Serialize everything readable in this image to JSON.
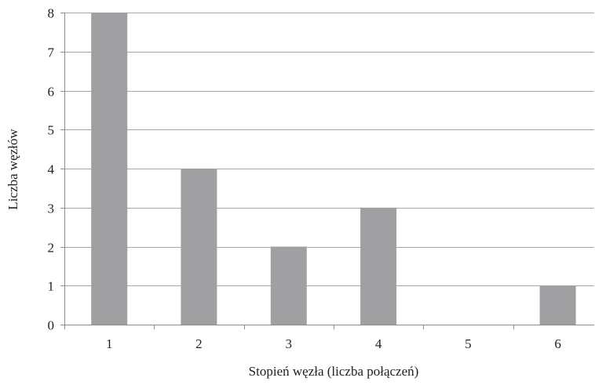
{
  "chart_data": {
    "type": "bar",
    "title": "",
    "xlabel": "Stopień węzła (liczba połączeń)",
    "ylabel": "Liczba węzłów",
    "categories": [
      "1",
      "2",
      "3",
      "4",
      "5",
      "6"
    ],
    "values": [
      8,
      4,
      2,
      3,
      0,
      1
    ],
    "ylim": [
      0,
      8
    ],
    "yticks": [
      "0",
      "1",
      "2",
      "3",
      "4",
      "5",
      "6",
      "7",
      "8"
    ],
    "grid": "horizontal",
    "legend": "none",
    "colors": {
      "bar": "#a0a0a3",
      "grid": "#a6a6a6",
      "axis": "#8c8c8c",
      "text": "#222222"
    }
  }
}
